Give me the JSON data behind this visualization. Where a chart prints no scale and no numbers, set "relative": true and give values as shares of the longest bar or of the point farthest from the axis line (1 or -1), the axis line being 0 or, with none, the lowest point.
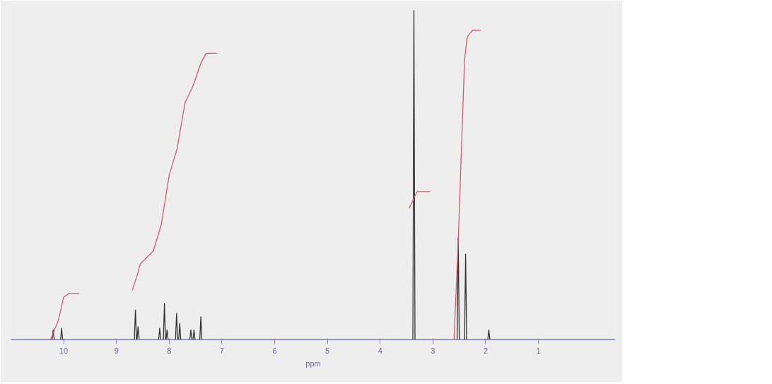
{
  "chart_data": {
    "type": "line",
    "relative": true,
    "xlabel": "ppm",
    "xlim": [
      11.0,
      -0.46
    ],
    "xticks": [
      10,
      9,
      8,
      7,
      6,
      5,
      4,
      3,
      2,
      1
    ],
    "tick_labels": "x",
    "grid": false,
    "marker": "none",
    "line_style": "solid",
    "series": [
      {
        "color": "#333333",
        "x": [
          11.0,
          10.22,
          10.2,
          10.18,
          10.06,
          10.04,
          10.02,
          8.66,
          8.64,
          8.62,
          8.61,
          8.59,
          8.57,
          8.2,
          8.18,
          8.16,
          8.11,
          8.09,
          8.07,
          8.06,
          8.04,
          8.02,
          7.88,
          7.86,
          7.84,
          7.82,
          7.8,
          7.78,
          7.61,
          7.59,
          7.57,
          7.55,
          7.53,
          7.51,
          7.42,
          7.4,
          7.38,
          3.38,
          3.36,
          3.34,
          2.54,
          2.52,
          2.5,
          2.4,
          2.38,
          2.36,
          1.96,
          1.94,
          1.92,
          -0.46
        ],
        "values": [
          0,
          0,
          0.03,
          0,
          0,
          0.035,
          0,
          0,
          0.09,
          0,
          0,
          0.04,
          0,
          0,
          0.035,
          0,
          0,
          0.11,
          0,
          0,
          0.03,
          0,
          0,
          0.08,
          0,
          0,
          0.05,
          0,
          0,
          0.03,
          0,
          0,
          0.03,
          0,
          0,
          0.07,
          0,
          0,
          1.0,
          0,
          0,
          0.31,
          0,
          0,
          0.26,
          0,
          0,
          0.03,
          0,
          0
        ]
      },
      {
        "color": "#d9576a",
        "x": [
          10.25,
          10.1,
          10.0,
          9.9,
          9.7,
          null,
          8.7,
          8.6,
          8.55,
          8.3,
          8.15,
          8.0,
          7.85,
          7.7,
          7.55,
          7.4,
          7.3,
          7.1,
          null,
          3.45,
          3.36,
          3.3,
          3.05,
          null,
          2.6,
          2.52,
          2.4,
          2.35,
          2.25,
          2.1
        ],
        "values": [
          0.0,
          0.06,
          0.13,
          0.14,
          0.14,
          null,
          0.15,
          0.2,
          0.23,
          0.27,
          0.35,
          0.5,
          0.58,
          0.72,
          0.77,
          0.84,
          0.87,
          0.87,
          null,
          0.4,
          0.43,
          0.45,
          0.45,
          null,
          0.0,
          0.3,
          0.85,
          0.92,
          0.94,
          0.94
        ]
      }
    ]
  }
}
